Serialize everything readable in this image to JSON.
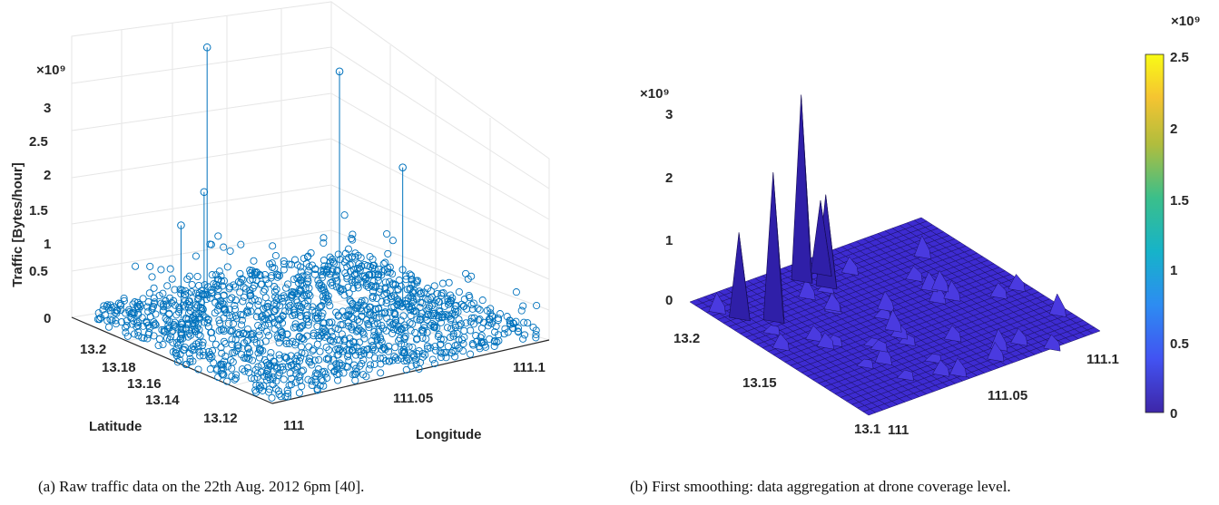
{
  "chart_data": [
    {
      "type": "scatter",
      "subtype": "3d-stem",
      "caption": "(a) Raw traffic data on the 22th Aug. 2012 6pm [40].",
      "xlabel": "Longitude",
      "ylabel": "Latitude",
      "zlabel": "Traffic [Bytes/hour]",
      "z_exponent": "×10⁹",
      "xticks": [
        "111",
        "111.05",
        "111.1"
      ],
      "yticks": [
        "13.2",
        "13.18",
        "13.16",
        "13.14",
        "13.12"
      ],
      "zticks": [
        "0",
        "0.5",
        "1",
        "1.5",
        "2",
        "2.5",
        "3"
      ],
      "xlim": [
        111.0,
        111.12
      ],
      "ylim": [
        13.11,
        13.21
      ],
      "zlim": [
        0,
        3
      ],
      "grid": true,
      "marker_color": "#0072bd",
      "tall_stems": [
        {
          "x": 111.03,
          "y": 13.19,
          "z": 1.0
        },
        {
          "x": 111.04,
          "y": 13.19,
          "z": 1.3
        },
        {
          "x": 111.05,
          "y": 13.2,
          "z": 2.7
        },
        {
          "x": 111.09,
          "y": 13.18,
          "z": 2.4
        },
        {
          "x": 111.1,
          "y": 13.16,
          "z": 1.5
        }
      ]
    },
    {
      "type": "surface",
      "caption": "(b) First smoothing: data aggregation at drone coverage level.",
      "xticks": [
        "111",
        "111.05",
        "111.1"
      ],
      "yticks": [
        "13.2",
        "13.15",
        "13.1"
      ],
      "zticks": [
        "0",
        "1",
        "2",
        "3"
      ],
      "z_exponent": "×10⁹",
      "xlim": [
        111.0,
        111.12
      ],
      "ylim": [
        13.1,
        13.22
      ],
      "zlim": [
        0,
        3
      ],
      "colorbar": {
        "ticks": [
          "0",
          "0.5",
          "1",
          "1.5",
          "2",
          "2.5"
        ],
        "exponent": "×10⁹",
        "range": [
          0,
          2.65
        ],
        "colormap": "parula"
      },
      "peaks": [
        {
          "x": 111.01,
          "y": 13.2,
          "z": 1.3
        },
        {
          "x": 111.02,
          "y": 13.19,
          "z": 2.3
        },
        {
          "x": 111.05,
          "y": 13.21,
          "z": 2.9
        },
        {
          "x": 111.055,
          "y": 13.2,
          "z": 1.4
        },
        {
          "x": 111.06,
          "y": 13.21,
          "z": 1.1
        }
      ],
      "surface_color": "#3d2bd1"
    }
  ]
}
